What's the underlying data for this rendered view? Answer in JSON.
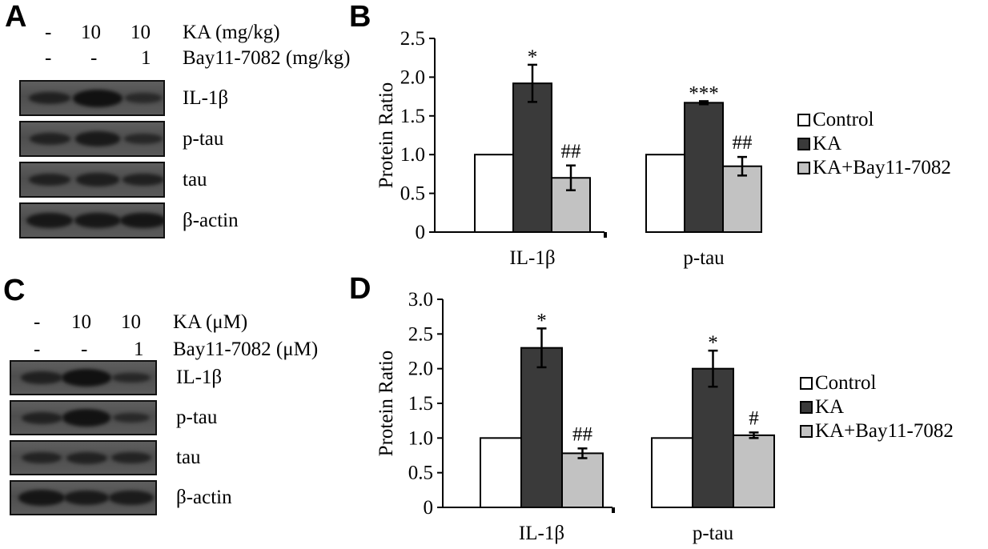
{
  "panels": {
    "A": {
      "letter": "A",
      "header_rows": [
        {
          "values": [
            "-",
            "10",
            "10"
          ],
          "label": "KA (mg/kg)"
        },
        {
          "values": [
            "-",
            "-",
            "1"
          ],
          "label": "Bay11-7082 (mg/kg)"
        }
      ],
      "blots": [
        {
          "label": "IL-1β",
          "intensity": [
            0.55,
            1.0,
            0.3
          ]
        },
        {
          "label": "p-tau",
          "intensity": [
            0.5,
            0.75,
            0.35
          ]
        },
        {
          "label": "tau",
          "intensity": [
            0.55,
            0.6,
            0.55
          ]
        },
        {
          "label": "β-actin",
          "intensity": [
            0.8,
            0.8,
            0.85
          ]
        }
      ]
    },
    "C": {
      "letter": "C",
      "header_rows": [
        {
          "values": [
            "-",
            "10",
            "10"
          ],
          "label": "KA (μM)"
        },
        {
          "values": [
            "-",
            "-",
            "1"
          ],
          "label": "Bay11-7082 (μM)"
        }
      ],
      "blots": [
        {
          "label": "IL-1β",
          "intensity": [
            0.55,
            1.0,
            0.35
          ]
        },
        {
          "label": "p-tau",
          "intensity": [
            0.5,
            0.95,
            0.3
          ]
        },
        {
          "label": "tau",
          "intensity": [
            0.45,
            0.5,
            0.45
          ]
        },
        {
          "label": "β-actin",
          "intensity": [
            0.85,
            0.75,
            0.7
          ]
        }
      ]
    }
  },
  "chart_data": [
    {
      "panel": "B",
      "type": "bar",
      "categories": [
        "IL-1β",
        "p-tau"
      ],
      "ylabel": "Protein Ratio",
      "ylim": [
        0,
        2.5
      ],
      "yticks": [
        "0",
        "0.5",
        "1.0",
        "1.5",
        "2.0",
        "2.5"
      ],
      "legend_position": "right",
      "series": [
        {
          "name": "Control",
          "color": "#ffffff",
          "values": [
            1.0,
            1.0
          ],
          "errors": [
            0,
            0
          ],
          "annotations": [
            "",
            ""
          ]
        },
        {
          "name": "KA",
          "color": "#3a3a3a",
          "values": [
            1.92,
            1.67
          ],
          "errors": [
            0.24,
            0.02
          ],
          "annotations": [
            "*",
            "***"
          ]
        },
        {
          "name": "KA+Bay11-7082",
          "color": "#c2c2c2",
          "values": [
            0.7,
            0.85
          ],
          "errors": [
            0.16,
            0.12
          ],
          "annotations": [
            "##",
            "##"
          ]
        }
      ]
    },
    {
      "panel": "D",
      "type": "bar",
      "categories": [
        "IL-1β",
        "p-tau"
      ],
      "ylabel": "Protein Ratio",
      "ylim": [
        0,
        3.0
      ],
      "yticks": [
        "0",
        "0.5",
        "1.0",
        "1.5",
        "2.0",
        "2.5",
        "3.0"
      ],
      "legend_position": "right",
      "series": [
        {
          "name": "Control",
          "color": "#ffffff",
          "values": [
            1.0,
            1.0
          ],
          "errors": [
            0,
            0
          ],
          "annotations": [
            "",
            ""
          ]
        },
        {
          "name": "KA",
          "color": "#3a3a3a",
          "values": [
            2.3,
            2.0
          ],
          "errors": [
            0.28,
            0.26
          ],
          "annotations": [
            "*",
            "*"
          ]
        },
        {
          "name": "KA+Bay11-7082",
          "color": "#c2c2c2",
          "values": [
            0.78,
            1.04
          ],
          "errors": [
            0.07,
            0.04
          ],
          "annotations": [
            "##",
            "#"
          ]
        }
      ]
    }
  ]
}
